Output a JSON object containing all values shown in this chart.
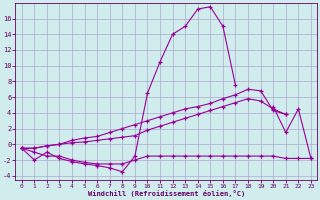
{
  "background_color": "#d0ecec",
  "line_color": "#990099",
  "grid_color": "#aaaacc",
  "xlabel": "Windchill (Refroidissement éolien,°C)",
  "xlabel_color": "#660066",
  "tick_color": "#660066",
  "xlim": [
    -0.5,
    23.5
  ],
  "ylim": [
    -4.5,
    18
  ],
  "yticks": [
    -4,
    -2,
    0,
    2,
    4,
    6,
    8,
    10,
    12,
    14,
    16
  ],
  "xticks": [
    0,
    1,
    2,
    3,
    4,
    5,
    6,
    7,
    8,
    9,
    10,
    11,
    12,
    13,
    14,
    15,
    16,
    17,
    18,
    19,
    20,
    21,
    22,
    23
  ],
  "series1_x": [
    0,
    1,
    2,
    3,
    4,
    5,
    6,
    7,
    8,
    9,
    10,
    11,
    12,
    13,
    14,
    15,
    16,
    17,
    18,
    20,
    21,
    22,
    23
  ],
  "series1_y": [
    -0.5,
    -2.0,
    -1.0,
    -1.8,
    -2.2,
    -2.5,
    -2.7,
    -3.0,
    -3.5,
    -1.5,
    6.5,
    10.5,
    14.0,
    15.0,
    17.2,
    17.5,
    15.0,
    7.5,
    null,
    4.8,
    1.5,
    4.5,
    -1.8
  ],
  "series2_x": [
    0,
    1,
    2,
    3,
    4,
    5,
    6,
    7,
    8,
    9,
    10,
    11,
    12,
    13,
    14,
    15,
    16,
    17,
    18,
    19,
    20,
    21,
    22,
    23
  ],
  "series2_y": [
    -0.5,
    -0.5,
    -0.2,
    0.0,
    0.2,
    0.3,
    0.5,
    0.7,
    0.9,
    1.1,
    1.8,
    2.3,
    2.8,
    3.3,
    3.8,
    4.3,
    4.8,
    5.3,
    5.8,
    5.5,
    4.5,
    3.8,
    null,
    null
  ],
  "series3_x": [
    0,
    1,
    2,
    3,
    4,
    5,
    6,
    7,
    8,
    9,
    10,
    11,
    12,
    13,
    14,
    15,
    16,
    17,
    18,
    19,
    20,
    21,
    22,
    23
  ],
  "series3_y": [
    -0.5,
    -0.5,
    -0.2,
    0.0,
    0.5,
    0.8,
    1.0,
    1.5,
    2.0,
    2.5,
    3.0,
    3.5,
    4.0,
    4.5,
    4.8,
    5.2,
    5.8,
    6.3,
    7.0,
    6.8,
    4.3,
    3.8,
    null,
    null
  ],
  "series4_x": [
    0,
    1,
    2,
    3,
    4,
    5,
    6,
    7,
    8,
    9,
    10,
    11,
    12,
    13,
    14,
    15,
    16,
    17,
    18,
    19,
    20,
    21,
    22,
    23
  ],
  "series4_y": [
    -0.5,
    -1.0,
    -1.5,
    -1.5,
    -2.0,
    -2.3,
    -2.5,
    -2.5,
    -2.5,
    -2.0,
    -1.5,
    -1.5,
    -1.5,
    -1.5,
    -1.5,
    -1.5,
    -1.5,
    -1.5,
    -1.5,
    -1.5,
    -1.5,
    -1.8,
    -1.8,
    -1.8
  ]
}
